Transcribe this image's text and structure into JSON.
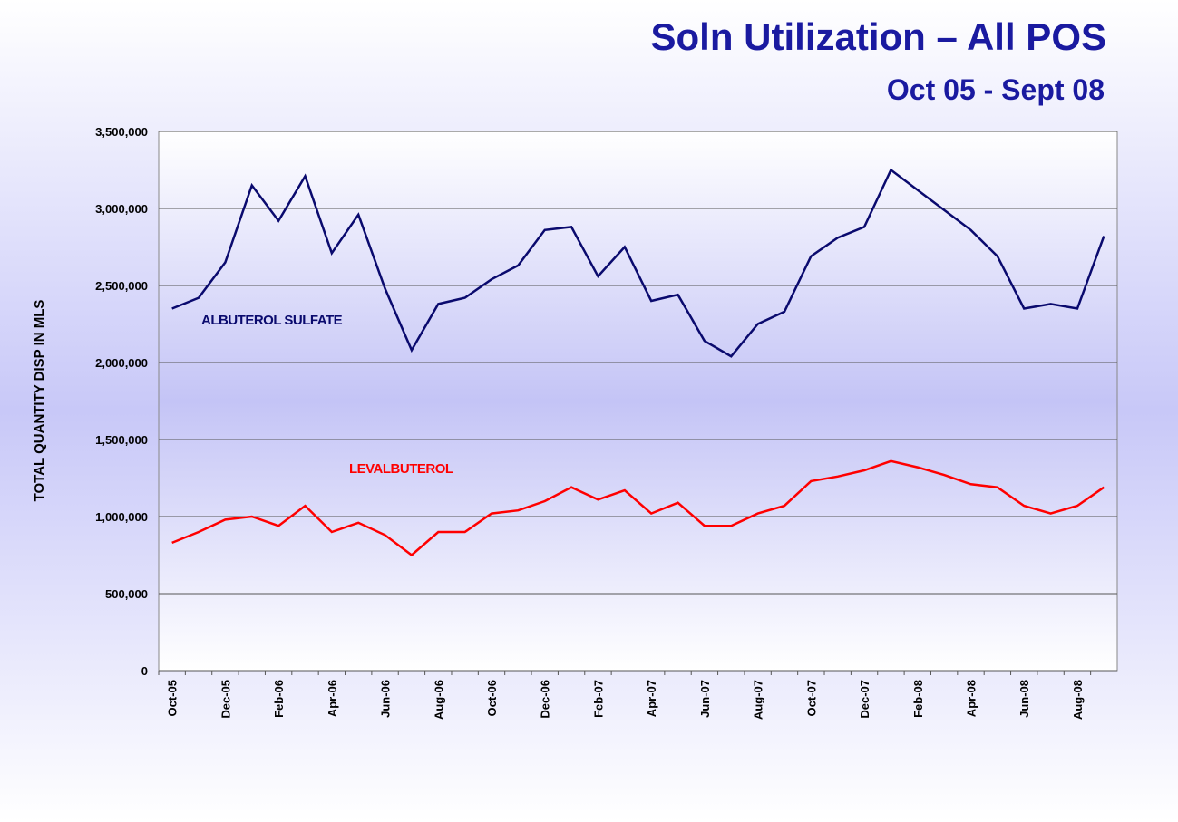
{
  "chart_data": {
    "type": "line",
    "title": "Soln Utilization – All POS",
    "subtitle": "Oct 05 - Sept 08",
    "y_axis_label": "TOTAL QUANTITY DISP IN MLS",
    "categories": [
      "Oct-05",
      null,
      "Dec-05",
      null,
      "Feb-06",
      null,
      "Apr-06",
      null,
      "Jun-06",
      null,
      "Aug-06",
      null,
      "Oct-06",
      null,
      "Dec-06",
      null,
      "Feb-07",
      null,
      "Apr-07",
      null,
      "Jun-07",
      null,
      "Aug-07",
      null,
      "Oct-07",
      null,
      "Dec-07",
      null,
      "Feb-08",
      null,
      "Apr-08",
      null,
      "Jun-08",
      null,
      "Aug-08",
      null
    ],
    "series": [
      {
        "name": "ALBUTEROL SULFATE",
        "color": "#0a0a6e",
        "values": [
          2350000,
          2420000,
          2650000,
          3150000,
          2920000,
          3210000,
          2710000,
          2960000,
          2480000,
          2080000,
          2380000,
          2420000,
          2540000,
          2630000,
          2860000,
          2880000,
          2560000,
          2750000,
          2400000,
          2440000,
          2140000,
          2040000,
          2250000,
          2330000,
          2690000,
          2810000,
          2880000,
          3250000,
          3120000,
          2990000,
          2860000,
          2690000,
          2350000,
          2380000,
          2350000,
          2820000
        ]
      },
      {
        "name": "LEVALBUTEROL",
        "color": "#ff0000",
        "values": [
          830000,
          900000,
          980000,
          1000000,
          940000,
          1070000,
          900000,
          960000,
          880000,
          750000,
          900000,
          900000,
          1020000,
          1040000,
          1100000,
          1190000,
          1110000,
          1170000,
          1020000,
          1090000,
          940000,
          940000,
          1020000,
          1070000,
          1230000,
          1260000,
          1300000,
          1360000,
          1320000,
          1270000,
          1210000,
          1190000,
          1070000,
          1020000,
          1070000,
          1190000
        ]
      }
    ],
    "ylim": [
      0,
      3500000
    ],
    "yticks": [
      0,
      {
        "value": 500000,
        "label": "500,000"
      },
      {
        "value": 1000000,
        "label": "1,000,000"
      },
      {
        "value": 1500000,
        "label": "1,500,000"
      },
      {
        "value": 2000000,
        "label": "2,000,000"
      },
      {
        "value": 2500000,
        "label": "2,500,000"
      },
      {
        "value": 3000000,
        "label": "3,000,000"
      },
      {
        "value": 3500000,
        "label": "3,500,000"
      }
    ],
    "grid": true
  }
}
